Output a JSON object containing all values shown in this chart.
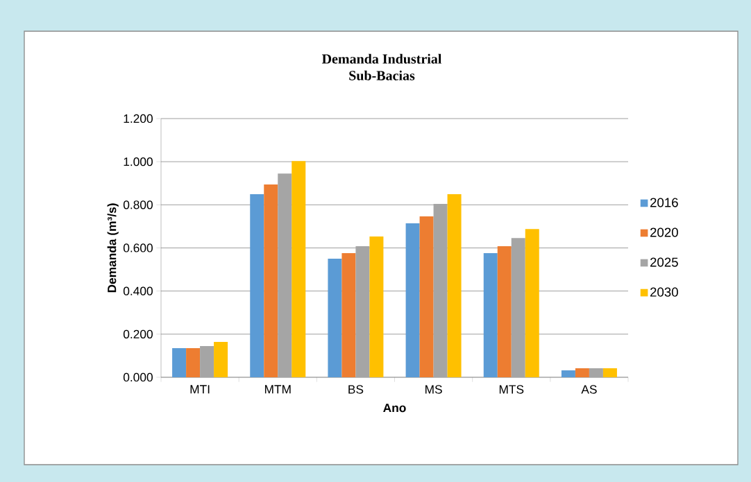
{
  "chart_data": {
    "type": "bar",
    "title": "Demanda Industrial",
    "subtitle": "Sub-Bacias",
    "xlabel": "Ano",
    "ylabel": "Demanda (m³/s)",
    "categories": [
      "MTI",
      "MTM",
      "BS",
      "MS",
      "MTS",
      "AS"
    ],
    "series": [
      {
        "name": "2016",
        "color": "#5b9bd5",
        "values": [
          0.135,
          0.849,
          0.55,
          0.714,
          0.576,
          0.032
        ]
      },
      {
        "name": "2020",
        "color": "#ed7d31",
        "values": [
          0.135,
          0.894,
          0.576,
          0.746,
          0.608,
          0.042
        ]
      },
      {
        "name": "2025",
        "color": "#a5a5a5",
        "values": [
          0.145,
          0.945,
          0.608,
          0.804,
          0.646,
          0.042
        ]
      },
      {
        "name": "2030",
        "color": "#ffc000",
        "values": [
          0.164,
          1.003,
          0.653,
          0.849,
          0.688,
          0.042
        ]
      }
    ],
    "ylim": [
      0,
      1.2
    ],
    "yticks": [
      {
        "value": 0,
        "label": "0.000"
      },
      {
        "value": 0.2,
        "label": "0.200"
      },
      {
        "value": 0.4,
        "label": "0.400"
      },
      {
        "value": 0.6,
        "label": "0.600"
      },
      {
        "value": 0.8,
        "label": "0.800"
      },
      {
        "value": 1.0,
        "label": "1.000"
      },
      {
        "value": 1.2,
        "label": "1.200"
      }
    ],
    "grid": "y",
    "legend": "right"
  }
}
